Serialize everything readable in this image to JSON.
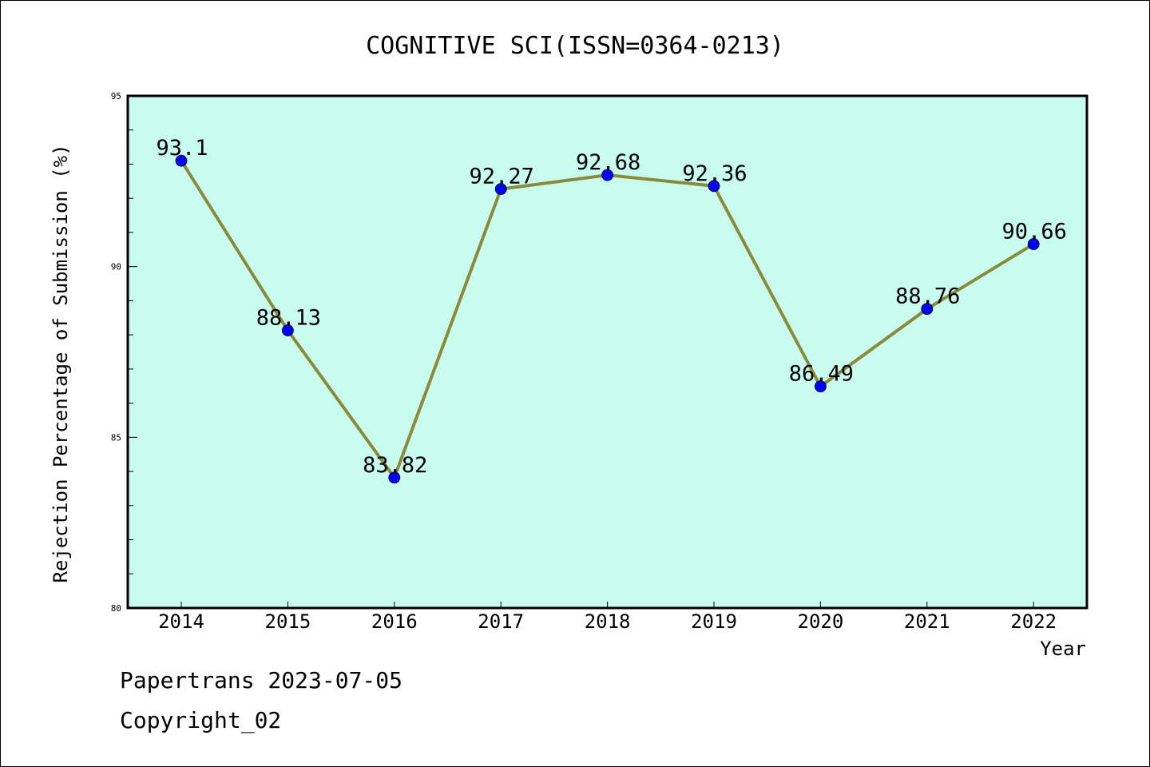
{
  "chart_data": {
    "type": "line",
    "title": "COGNITIVE SCI(ISSN=0364-0213)",
    "xlabel": "Year",
    "ylabel": "Rejection Percentage of Submission (%)",
    "categories": [
      "2014",
      "2015",
      "2016",
      "2017",
      "2018",
      "2019",
      "2020",
      "2021",
      "2022"
    ],
    "values": [
      93.1,
      88.13,
      83.82,
      92.27,
      92.68,
      92.36,
      86.49,
      88.76,
      90.66
    ],
    "data_labels": [
      "93.1",
      "88.13",
      "83.82",
      "92.27",
      "92.68",
      "92.36",
      "86.49",
      "88.76",
      "90.66"
    ],
    "ylim": [
      80,
      95
    ],
    "y_major_ticks": [
      "80",
      "85",
      "90",
      "95"
    ],
    "y_minor_step": 1,
    "grid": false,
    "colors": {
      "plot_background": "#c8fcee",
      "line": "#8b8a3a",
      "marker": "#0000ff"
    }
  },
  "footer": {
    "line1": "Papertrans 2023-07-05",
    "line2": "Copyright_02"
  }
}
